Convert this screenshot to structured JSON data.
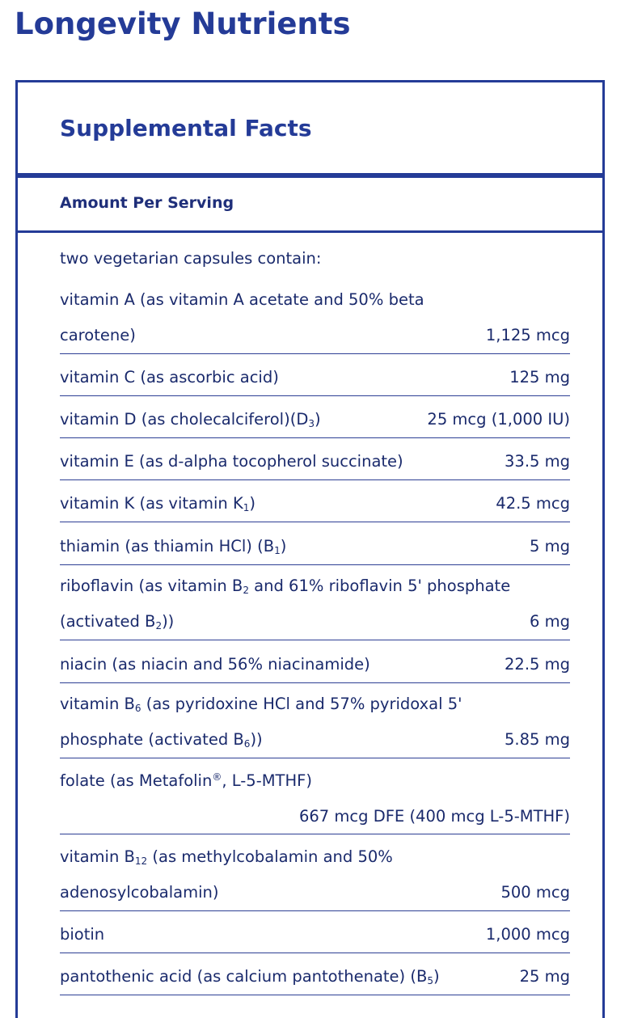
{
  "page_title": "Longevity Nutrients",
  "facts_title": "Supplemental Facts",
  "amount_label": "Amount Per Serving",
  "intro": "two vegetarian capsules contain:",
  "rows": [
    {
      "name_a": "vitamin A (as vitamin A acetate and 50% beta carotene)",
      "amount": "1,125 mcg"
    },
    {
      "name_a": "vitamin C (as ascorbic acid)",
      "amount": "125 mg"
    },
    {
      "name_a": "vitamin D (as cholecalciferol)(D",
      "sub": "3",
      "name_b": ")",
      "amount": "25 mcg (1,000 IU)"
    },
    {
      "name_a": "vitamin E (as d-alpha tocopherol succinate)",
      "amount": "33.5 mg"
    },
    {
      "name_a": "vitamin K (as vitamin K",
      "sub": "1",
      "name_b": ")",
      "amount": "42.5 mcg"
    },
    {
      "name_a": "thiamin (as thiamin HCl) (B",
      "sub": "1",
      "name_b": ")",
      "amount": "5 mg"
    },
    {
      "name_a": "riboflavin (as vitamin B",
      "sub": "2",
      "name_b": " and 61% riboflavin 5' phosphate (activated B",
      "sub2": "2",
      "name_c": "))",
      "amount": "6 mg"
    },
    {
      "name_a": "niacin (as niacin and 56% niacinamide)",
      "amount": "22.5 mg"
    },
    {
      "name_a": "vitamin B",
      "sub": "6",
      "name_b": " (as pyridoxine HCl and 57% pyridoxal 5' phosphate (activated B",
      "sub2": "6",
      "name_c": "))",
      "amount": "5.85 mg"
    },
    {
      "name_a": "folate (as Metafolin",
      "sup": "®",
      "name_b": ", L-5-MTHF)",
      "amount": "667 mcg DFE (400 mcg L-5-MTHF)"
    },
    {
      "name_a": "vitamin B",
      "sub": "12",
      "name_b": " (as methylcobalamin and 50% adenosylcobalamin)",
      "amount": "500 mcg"
    },
    {
      "name_a": "biotin",
      "amount": "1,000 mcg"
    },
    {
      "name_a": "pantothenic acid (as calcium pantothenate) (B",
      "sub": "5",
      "name_b": ")",
      "amount": "25 mg"
    }
  ],
  "colors": {
    "brand_blue": "#243b97",
    "text_navy": "#1a2a6c"
  }
}
